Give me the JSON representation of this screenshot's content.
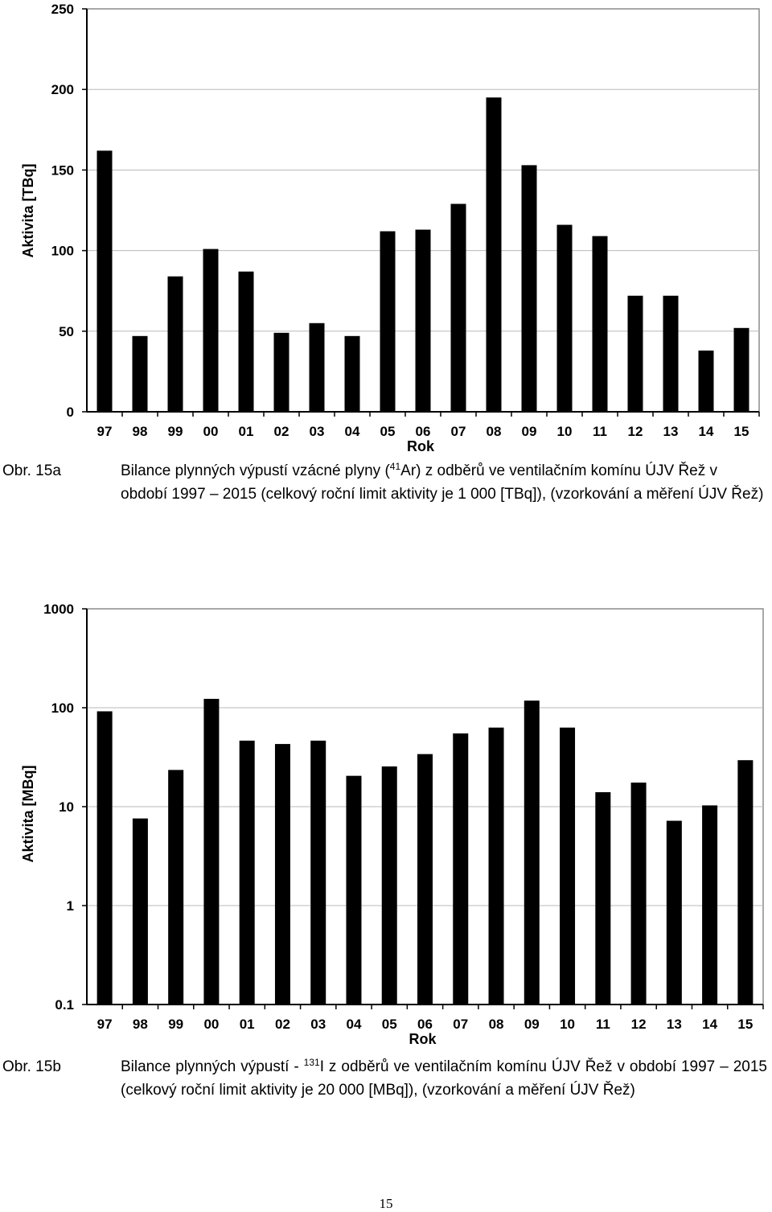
{
  "chart_data": [
    {
      "type": "bar",
      "title": "",
      "xlabel": "Rok",
      "ylabel": "Aktivita [TBq]",
      "yscale": "linear",
      "ylim": [
        0,
        250
      ],
      "yticks": [
        "0",
        "50",
        "100",
        "150",
        "200",
        "250"
      ],
      "grid": true,
      "categories": [
        "97",
        "98",
        "99",
        "00",
        "01",
        "02",
        "03",
        "04",
        "05",
        "06",
        "07",
        "08",
        "09",
        "10",
        "11",
        "12",
        "13",
        "14",
        "15"
      ],
      "values": [
        162,
        47,
        84,
        101,
        87,
        49,
        55,
        47,
        112,
        113,
        129,
        195,
        153,
        116,
        109,
        72,
        72,
        38,
        52
      ],
      "bar_color": "#000000"
    },
    {
      "type": "bar",
      "title": "",
      "xlabel": "Rok",
      "ylabel": "Aktivita [MBq]",
      "yscale": "log",
      "ylim": [
        0.1,
        1000
      ],
      "yticks": [
        "0.1",
        "1",
        "10",
        "100",
        "1000"
      ],
      "grid": true,
      "categories": [
        "97",
        "98",
        "99",
        "00",
        "01",
        "02",
        "03",
        "04",
        "05",
        "06",
        "07",
        "08",
        "09",
        "10",
        "11",
        "12",
        "13",
        "14",
        "15"
      ],
      "values": [
        92,
        7.6,
        23.5,
        123,
        46.5,
        43,
        46.5,
        20.5,
        25.5,
        34,
        55,
        63,
        118,
        63,
        14,
        17.5,
        7.2,
        10.3,
        29.5
      ],
      "bar_color": "#000000"
    }
  ],
  "captions": {
    "a": {
      "label": "Obr. 15a",
      "text_before": "Bilance plynných výpustí vzácné plyny (",
      "isotope_mass": "41",
      "text_after": "Ar) z odběrů ve ventilačním komínu ÚJV Řež v období 1997 – 2015 (celkový roční limit aktivity je 1 000 [TBq]), (vzorkování a měření ÚJV Řež)"
    },
    "b": {
      "label": "Obr. 15b",
      "text_before": "Bilance plynných výpustí - ",
      "isotope_mass": "131",
      "text_after": "I z odběrů ve ventilačním komínu ÚJV Řež v období 1997 – 2015 (celkový roční limit aktivity je 20 000 [MBq]), (vzorkování a měření ÚJV Řež)"
    }
  },
  "page_number": "15"
}
